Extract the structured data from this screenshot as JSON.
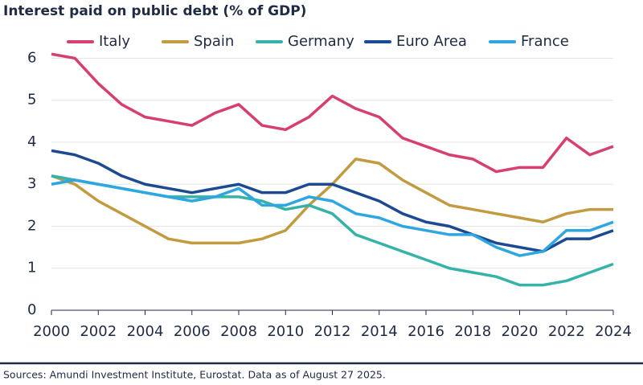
{
  "chart_data": {
    "type": "line",
    "title": "Interest paid on public debt (% of GDP)",
    "source": "Sources: Amundi Investment Institute, Eurostat. Data as of August 27 2025.",
    "x": [
      2000,
      2001,
      2002,
      2003,
      2004,
      2005,
      2006,
      2007,
      2008,
      2009,
      2010,
      2011,
      2012,
      2013,
      2014,
      2015,
      2016,
      2017,
      2018,
      2019,
      2020,
      2021,
      2022,
      2023,
      2024
    ],
    "series": [
      {
        "name": "Italy",
        "color": "#d63f6e",
        "values": [
          6.1,
          6.0,
          5.4,
          4.9,
          4.6,
          4.5,
          4.4,
          4.7,
          4.9,
          4.4,
          4.3,
          4.6,
          5.1,
          4.8,
          4.6,
          4.1,
          3.9,
          3.7,
          3.6,
          3.3,
          3.4,
          3.4,
          4.1,
          3.7,
          3.9
        ]
      },
      {
        "name": "Spain",
        "color": "#c29a3f",
        "values": [
          3.2,
          3.0,
          2.6,
          2.3,
          2.0,
          1.7,
          1.6,
          1.6,
          1.6,
          1.7,
          1.9,
          2.5,
          3.0,
          3.6,
          3.5,
          3.1,
          2.8,
          2.5,
          2.4,
          2.3,
          2.2,
          2.1,
          2.3,
          2.4,
          2.4
        ]
      },
      {
        "name": "Germany",
        "color": "#36b3a8",
        "values": [
          3.2,
          3.1,
          3.0,
          2.9,
          2.8,
          2.7,
          2.7,
          2.7,
          2.7,
          2.6,
          2.4,
          2.5,
          2.3,
          1.8,
          1.6,
          1.4,
          1.2,
          1.0,
          0.9,
          0.8,
          0.6,
          0.6,
          0.7,
          0.9,
          1.1
        ]
      },
      {
        "name": "Euro Area",
        "color": "#1c4a91",
        "values": [
          3.8,
          3.7,
          3.5,
          3.2,
          3.0,
          2.9,
          2.8,
          2.9,
          3.0,
          2.8,
          2.8,
          3.0,
          3.0,
          2.8,
          2.6,
          2.3,
          2.1,
          2.0,
          1.8,
          1.6,
          1.5,
          1.4,
          1.7,
          1.7,
          1.9
        ]
      },
      {
        "name": "France",
        "color": "#2ea6e0",
        "values": [
          3.0,
          3.1,
          3.0,
          2.9,
          2.8,
          2.7,
          2.6,
          2.7,
          2.9,
          2.5,
          2.5,
          2.7,
          2.6,
          2.3,
          2.2,
          2.0,
          1.9,
          1.8,
          1.8,
          1.5,
          1.3,
          1.4,
          1.9,
          1.9,
          2.1
        ]
      }
    ],
    "xlim": [
      2000,
      2024
    ],
    "xticks": [
      2000,
      2002,
      2004,
      2006,
      2008,
      2010,
      2012,
      2014,
      2016,
      2018,
      2020,
      2022,
      2024
    ],
    "ylim": [
      0,
      6.2
    ],
    "yticks": [
      0,
      1,
      2,
      3,
      4,
      5,
      6
    ],
    "grid": true
  }
}
